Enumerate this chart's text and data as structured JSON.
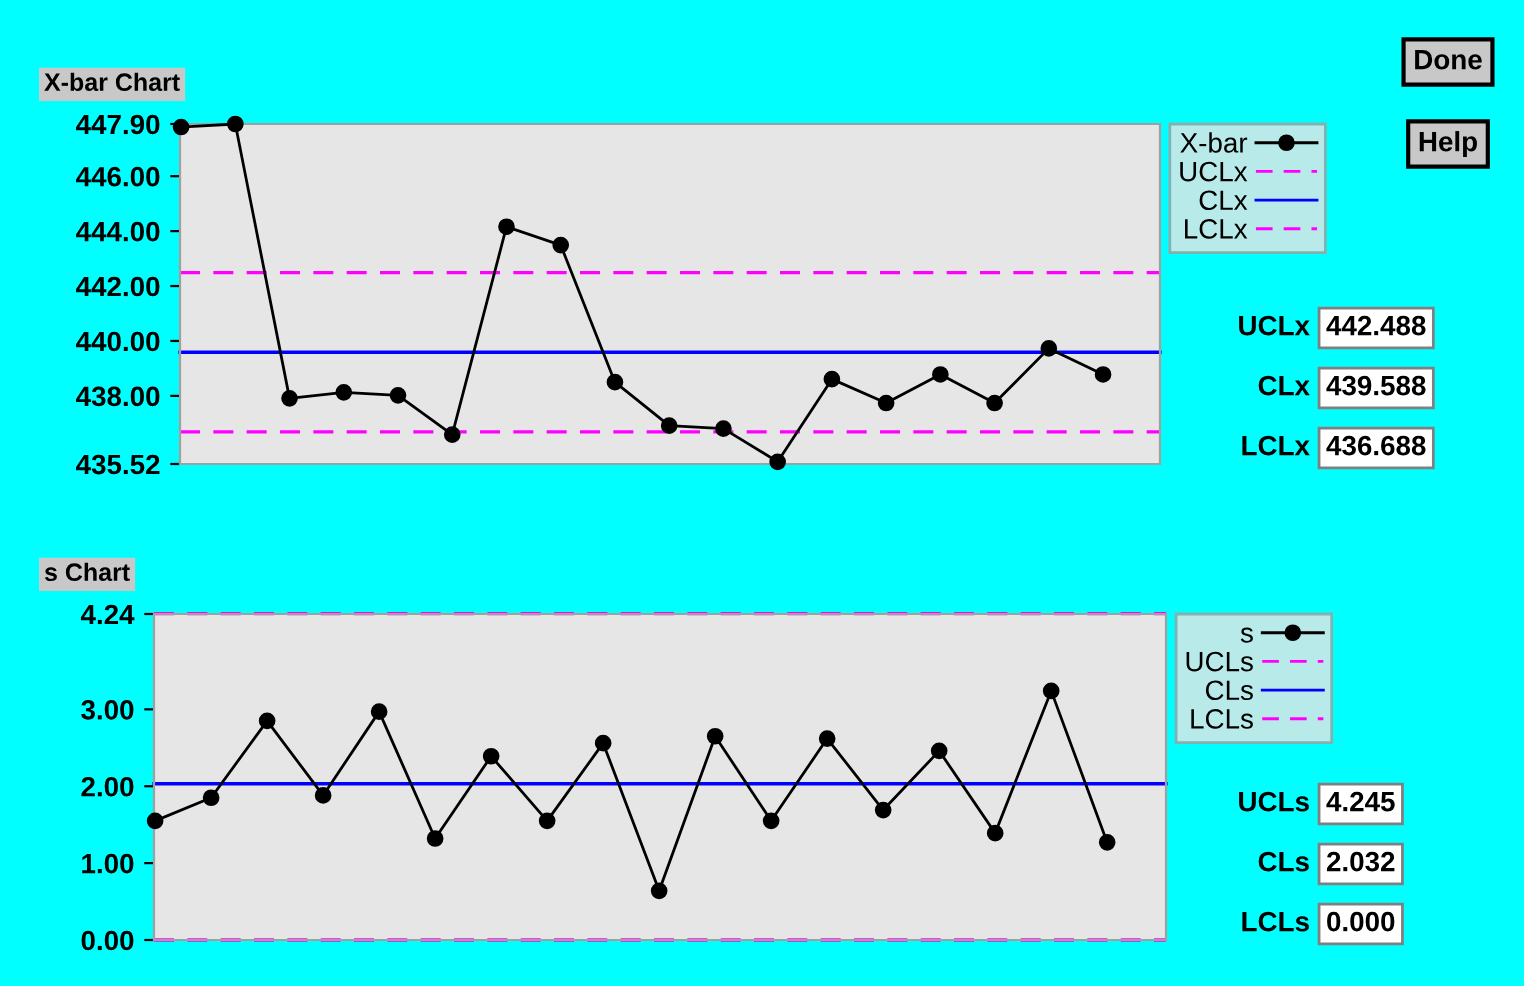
{
  "chart_data": [
    {
      "type": "line",
      "title": "X-bar Chart",
      "categories": [
        null,
        null,
        null,
        null,
        null,
        null,
        null,
        null,
        null,
        null,
        null,
        null,
        null,
        null,
        null,
        null,
        null,
        null
      ],
      "series": [
        {
          "name": "X-bar",
          "color": "#000000",
          "values": [
            447.79,
            447.9,
            437.91,
            438.13,
            438.02,
            436.59,
            444.16,
            443.49,
            438.5,
            436.92,
            436.81,
            435.6,
            438.61,
            437.74,
            438.78,
            437.74,
            439.73,
            438.78
          ]
        }
      ],
      "ylim": [
        435.52,
        447.9
      ],
      "yticks": [
        {
          "value": 435.52,
          "label": "435.52"
        },
        {
          "value": 438,
          "label": "438.00"
        },
        {
          "value": 440,
          "label": "440.00"
        },
        {
          "value": 442,
          "label": "442.00"
        },
        {
          "value": 444,
          "label": "444.00"
        },
        {
          "value": 446,
          "label": "446.00"
        },
        {
          "value": 447.9,
          "label": "447.90"
        }
      ],
      "tick_labels": "y",
      "grid": false,
      "legend": "right",
      "marker": "circle",
      "line_style": "solid",
      "ref_lines": [
        {
          "axis": "y",
          "value": 442.488,
          "label": "UCLx",
          "color": "#ff00ff",
          "line_style": "dashed"
        },
        {
          "axis": "y",
          "value": 439.588,
          "label": "CLx",
          "color": "#0000ff",
          "line_style": "solid"
        },
        {
          "axis": "y",
          "value": 436.688,
          "label": "LCLx",
          "color": "#ff00ff",
          "line_style": "dashed"
        }
      ],
      "annotations": [
        "442.488",
        "439.588",
        "436.688",
        "Done",
        "Help"
      ]
    },
    {
      "type": "line",
      "title": "s Chart",
      "categories": [
        null,
        null,
        null,
        null,
        null,
        null,
        null,
        null,
        null,
        null,
        null,
        null,
        null,
        null,
        null,
        null,
        null,
        null
      ],
      "series": [
        {
          "name": "s",
          "color": "#000000",
          "values": [
            1.55,
            1.85,
            2.85,
            1.88,
            2.97,
            1.32,
            2.39,
            1.55,
            2.56,
            0.64,
            2.65,
            1.55,
            2.62,
            1.69,
            2.46,
            1.39,
            3.24,
            1.27
          ]
        }
      ],
      "ylim": [
        0,
        4.24
      ],
      "yticks": [
        {
          "value": 0,
          "label": "0.00"
        },
        {
          "value": 1,
          "label": "1.00"
        },
        {
          "value": 2,
          "label": "2.00"
        },
        {
          "value": 3,
          "label": "3.00"
        },
        {
          "value": 4.24,
          "label": "4.24"
        }
      ],
      "tick_labels": "y",
      "grid": false,
      "legend": "right",
      "marker": "circle",
      "line_style": "solid",
      "ref_lines": [
        {
          "axis": "y",
          "value": 4.245,
          "label": "UCLs",
          "color": "#ff00ff",
          "line_style": "dashed"
        },
        {
          "axis": "y",
          "value": 2.032,
          "label": "CLs",
          "color": "#0000ff",
          "line_style": "solid"
        },
        {
          "axis": "y",
          "value": 0,
          "label": "LCLs",
          "color": "#ff00ff",
          "line_style": "dashed"
        }
      ],
      "annotations": [
        "4.245",
        "2.032",
        "0.000"
      ]
    }
  ]
}
